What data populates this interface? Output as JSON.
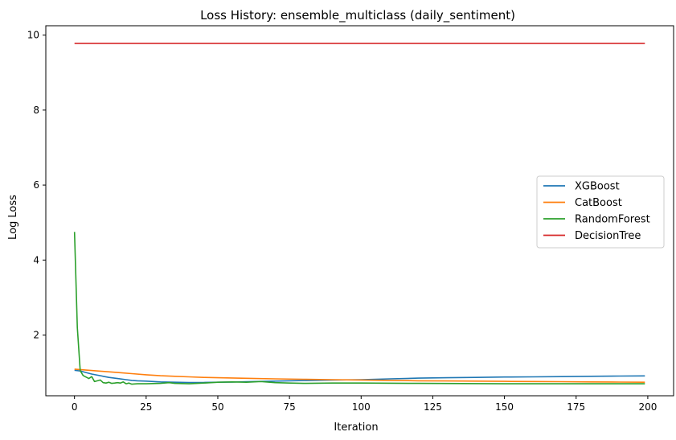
{
  "chart_data": {
    "type": "line",
    "title": "Loss History: ensemble_multiclass (daily_sentiment)",
    "xlabel": "Iteration",
    "ylabel": "Log Loss",
    "xlim": [
      -10,
      209
    ],
    "ylim": [
      0.38,
      10.25
    ],
    "xticks": [
      0,
      25,
      50,
      75,
      100,
      125,
      150,
      175,
      200
    ],
    "yticks": [
      2,
      4,
      6,
      8,
      10
    ],
    "grid": false,
    "legend_position": "center-right",
    "series": [
      {
        "name": "XGBoost",
        "color": "#1f77b4",
        "x": [
          0,
          2,
          4,
          6,
          8,
          10,
          12,
          15,
          18,
          20,
          22,
          25,
          30,
          35,
          40,
          45,
          50,
          55,
          60,
          70,
          80,
          90,
          100,
          110,
          120,
          130,
          140,
          150,
          160,
          170,
          180,
          190,
          199
        ],
        "y": [
          1.06,
          1.04,
          1.0,
          0.96,
          0.93,
          0.9,
          0.87,
          0.84,
          0.81,
          0.79,
          0.78,
          0.77,
          0.75,
          0.74,
          0.735,
          0.735,
          0.74,
          0.745,
          0.755,
          0.77,
          0.785,
          0.8,
          0.81,
          0.83,
          0.85,
          0.86,
          0.87,
          0.88,
          0.885,
          0.89,
          0.9,
          0.905,
          0.91
        ]
      },
      {
        "name": "CatBoost",
        "color": "#ff7f0e",
        "x": [
          0,
          5,
          10,
          15,
          20,
          25,
          30,
          35,
          40,
          45,
          50,
          60,
          70,
          80,
          90,
          100,
          110,
          120,
          130,
          140,
          150,
          160,
          170,
          180,
          190,
          199
        ],
        "y": [
          1.09,
          1.06,
          1.03,
          1.0,
          0.97,
          0.94,
          0.915,
          0.9,
          0.885,
          0.87,
          0.86,
          0.845,
          0.83,
          0.82,
          0.81,
          0.8,
          0.79,
          0.78,
          0.775,
          0.77,
          0.765,
          0.76,
          0.755,
          0.75,
          0.745,
          0.74
        ]
      },
      {
        "name": "RandomForest",
        "color": "#2ca02c",
        "x": [
          0,
          1,
          2,
          3,
          4,
          5,
          6,
          7,
          8,
          9,
          10,
          11,
          12,
          13,
          14,
          15,
          16,
          17,
          18,
          19,
          20,
          22,
          25,
          30,
          33,
          35,
          40,
          45,
          50,
          55,
          60,
          65,
          70,
          75,
          80,
          90,
          100,
          120,
          150,
          175,
          199
        ],
        "y": [
          4.75,
          2.2,
          1.05,
          0.92,
          0.88,
          0.84,
          0.89,
          0.76,
          0.78,
          0.8,
          0.73,
          0.72,
          0.74,
          0.71,
          0.72,
          0.73,
          0.72,
          0.75,
          0.7,
          0.72,
          0.69,
          0.7,
          0.7,
          0.71,
          0.73,
          0.71,
          0.7,
          0.72,
          0.74,
          0.75,
          0.74,
          0.76,
          0.73,
          0.72,
          0.71,
          0.72,
          0.72,
          0.71,
          0.7,
          0.7,
          0.7
        ]
      },
      {
        "name": "DecisionTree",
        "color": "#d62728",
        "x": [
          0,
          199
        ],
        "y": [
          9.78,
          9.78
        ]
      }
    ]
  }
}
